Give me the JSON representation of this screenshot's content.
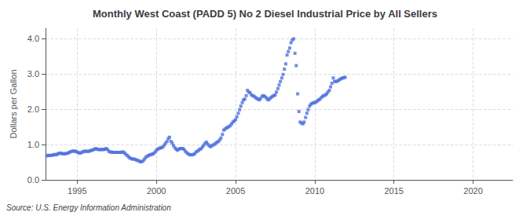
{
  "chart_data": {
    "type": "scatter",
    "title": "Monthly West Coast (PADD 5) No 2 Diesel Industrial Price by All Sellers",
    "ylabel": "Dollars per Gallon",
    "annotation": "Source: U.S. Energy Information Administration",
    "marker": "square",
    "grid": true,
    "xlim": [
      1993.0,
      2022.5
    ],
    "xticks": [
      1995,
      2000,
      2005,
      2010,
      2015,
      2020
    ],
    "ylim": [
      0.0,
      4.3
    ],
    "yticks": [
      {
        "value": 0.0,
        "label": "0.0"
      },
      {
        "value": 1.0,
        "label": "1.0"
      },
      {
        "value": 2.0,
        "label": "2.0"
      },
      {
        "value": 3.0,
        "label": "3.0"
      },
      {
        "value": 4.0,
        "label": "4.0"
      }
    ],
    "x": [
      1993.08,
      1993.17,
      1993.25,
      1993.33,
      1993.42,
      1993.5,
      1993.58,
      1993.67,
      1993.75,
      1993.83,
      1993.92,
      1994.0,
      1994.08,
      1994.17,
      1994.25,
      1994.33,
      1994.42,
      1994.5,
      1994.58,
      1994.67,
      1994.75,
      1994.83,
      1994.92,
      1995.0,
      1995.08,
      1995.17,
      1995.25,
      1995.33,
      1995.42,
      1995.5,
      1995.58,
      1995.67,
      1995.75,
      1995.83,
      1995.92,
      1996.0,
      1996.08,
      1996.17,
      1996.25,
      1996.33,
      1996.42,
      1996.5,
      1996.58,
      1996.67,
      1996.75,
      1996.83,
      1996.92,
      1997.0,
      1997.08,
      1997.17,
      1997.25,
      1997.33,
      1997.42,
      1997.5,
      1997.58,
      1997.67,
      1997.75,
      1997.83,
      1997.92,
      1998.0,
      1998.08,
      1998.17,
      1998.25,
      1998.33,
      1998.42,
      1998.5,
      1998.58,
      1998.67,
      1998.75,
      1998.83,
      1998.92,
      1999.0,
      1999.08,
      1999.17,
      1999.25,
      1999.33,
      1999.42,
      1999.5,
      1999.58,
      1999.67,
      1999.75,
      1999.83,
      1999.92,
      2000.0,
      2000.08,
      2000.17,
      2000.25,
      2000.33,
      2000.42,
      2000.5,
      2000.58,
      2000.67,
      2000.75,
      2000.83,
      2000.92,
      2001.0,
      2001.08,
      2001.17,
      2001.25,
      2001.33,
      2001.42,
      2001.5,
      2001.58,
      2001.67,
      2001.75,
      2001.83,
      2001.92,
      2002.0,
      2002.08,
      2002.17,
      2002.25,
      2002.33,
      2002.42,
      2002.5,
      2002.58,
      2002.67,
      2002.75,
      2002.83,
      2002.92,
      2003.0,
      2003.08,
      2003.17,
      2003.25,
      2003.33,
      2003.42,
      2003.5,
      2003.58,
      2003.67,
      2003.75,
      2003.83,
      2003.92,
      2004.0,
      2004.08,
      2004.17,
      2004.25,
      2004.33,
      2004.42,
      2004.5,
      2004.58,
      2004.67,
      2004.75,
      2004.83,
      2004.92,
      2005.0,
      2005.08,
      2005.17,
      2005.25,
      2005.33,
      2005.42,
      2005.5,
      2005.58,
      2005.67,
      2005.75,
      2005.83,
      2005.92,
      2006.0,
      2006.08,
      2006.17,
      2006.25,
      2006.33,
      2006.42,
      2006.5,
      2006.58,
      2006.67,
      2006.75,
      2006.83,
      2006.92,
      2007.0,
      2007.08,
      2007.17,
      2007.25,
      2007.33,
      2007.42,
      2007.5,
      2007.58,
      2007.67,
      2007.75,
      2007.83,
      2007.92,
      2008.0,
      2008.08,
      2008.17,
      2008.25,
      2008.33,
      2008.42,
      2008.5,
      2008.58,
      2008.67,
      2008.75,
      2008.83,
      2008.92,
      2009.0,
      2009.08,
      2009.17,
      2009.25,
      2009.33,
      2009.42,
      2009.5,
      2009.58,
      2009.67,
      2009.75,
      2009.83,
      2009.92,
      2010.0,
      2010.08,
      2010.17,
      2010.25,
      2010.33,
      2010.42,
      2010.5,
      2010.58,
      2010.67,
      2010.75,
      2010.83,
      2010.92,
      2011.0,
      2011.08,
      2011.17,
      2011.25,
      2011.33,
      2011.42,
      2011.5,
      2011.58,
      2011.67,
      2011.75,
      2011.83,
      2011.92
    ],
    "values": [
      0.68,
      0.7,
      0.69,
      0.69,
      0.7,
      0.71,
      0.72,
      0.71,
      0.73,
      0.75,
      0.76,
      0.75,
      0.74,
      0.74,
      0.74,
      0.75,
      0.76,
      0.78,
      0.8,
      0.81,
      0.82,
      0.81,
      0.81,
      0.79,
      0.77,
      0.76,
      0.77,
      0.79,
      0.81,
      0.81,
      0.81,
      0.81,
      0.81,
      0.83,
      0.84,
      0.85,
      0.87,
      0.89,
      0.87,
      0.86,
      0.86,
      0.86,
      0.86,
      0.86,
      0.87,
      0.89,
      0.86,
      0.81,
      0.79,
      0.79,
      0.78,
      0.78,
      0.78,
      0.78,
      0.78,
      0.78,
      0.78,
      0.79,
      0.79,
      0.76,
      0.72,
      0.69,
      0.65,
      0.62,
      0.6,
      0.59,
      0.59,
      0.58,
      0.56,
      0.55,
      0.53,
      0.51,
      0.52,
      0.54,
      0.59,
      0.64,
      0.67,
      0.69,
      0.71,
      0.72,
      0.73,
      0.75,
      0.79,
      0.84,
      0.87,
      0.89,
      0.91,
      0.91,
      0.94,
      0.99,
      1.04,
      1.09,
      1.17,
      1.21,
      1.09,
      1.04,
      0.97,
      0.91,
      0.87,
      0.84,
      0.87,
      0.89,
      0.89,
      0.89,
      0.86,
      0.81,
      0.77,
      0.74,
      0.72,
      0.71,
      0.71,
      0.72,
      0.74,
      0.79,
      0.81,
      0.84,
      0.87,
      0.89,
      0.94,
      0.99,
      1.04,
      1.07,
      1.01,
      0.97,
      0.94,
      0.97,
      0.99,
      1.01,
      1.04,
      1.07,
      1.09,
      1.14,
      1.19,
      1.29,
      1.41,
      1.44,
      1.47,
      1.49,
      1.51,
      1.54,
      1.59,
      1.64,
      1.67,
      1.71,
      1.79,
      1.89,
      1.99,
      2.09,
      2.19,
      2.27,
      2.29,
      2.39,
      2.54,
      2.49,
      2.47,
      2.41,
      2.39,
      2.37,
      2.34,
      2.31,
      2.29,
      2.27,
      2.31,
      2.37,
      2.39,
      2.37,
      2.34,
      2.29,
      2.27,
      2.31,
      2.34,
      2.37,
      2.39,
      2.41,
      2.49,
      2.59,
      2.69,
      2.79,
      2.89,
      2.99,
      3.14,
      3.29,
      3.54,
      3.64,
      3.74,
      3.89,
      3.97,
      4.0,
      3.59,
      3.24,
      2.44,
      1.94,
      1.64,
      1.61,
      1.59,
      1.64,
      1.77,
      1.89,
      1.99,
      2.09,
      2.14,
      2.17,
      2.19,
      2.19,
      2.21,
      2.24,
      2.27,
      2.29,
      2.34,
      2.37,
      2.39,
      2.41,
      2.44,
      2.49,
      2.54,
      2.64,
      2.74,
      2.89,
      2.79,
      2.79,
      2.8,
      2.82,
      2.85,
      2.87,
      2.89,
      2.9,
      2.91
    ]
  }
}
